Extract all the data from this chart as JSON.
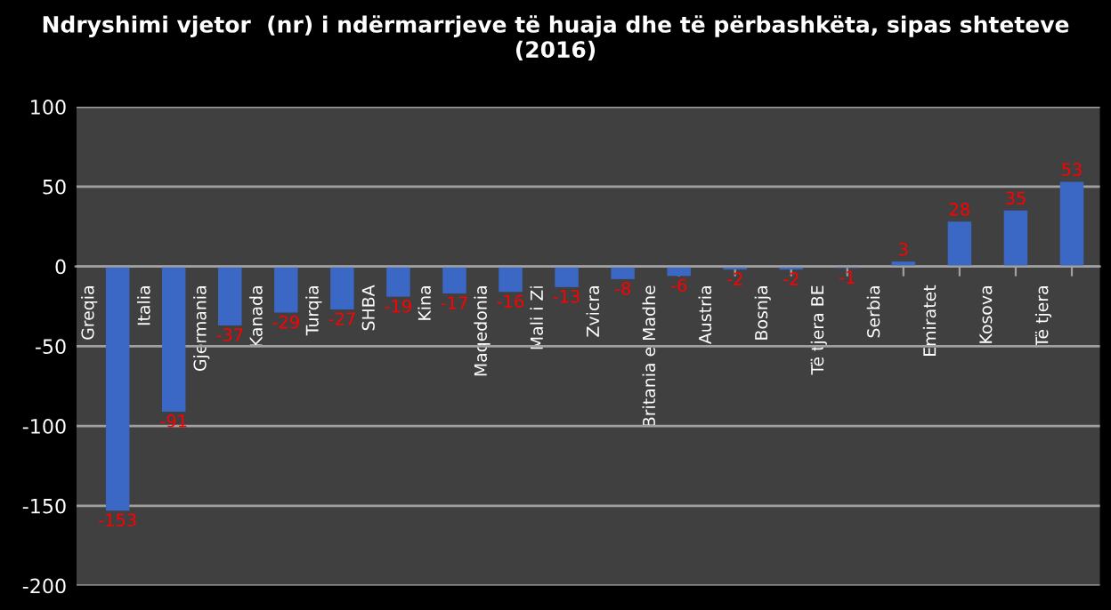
{
  "chart_data": {
    "type": "bar",
    "title": "Ndryshimi vjetor  (nr) i ndërmarrjeve të huaja dhe të përbashkëta, sipas shteteve\n(2016)",
    "categories": [
      "Greqia",
      "Italia",
      "Gjermania",
      "Kanada",
      "Turqia",
      "SHBA",
      "Kina",
      "Maqedonia",
      "Mali i Zi",
      "Zvicra",
      "Britania e Madhe",
      "Austria",
      "Bosnja",
      "Të tjera BE",
      "Serbia",
      "Emiratet",
      "Kosova",
      "Të tjera"
    ],
    "values": [
      -153,
      -91,
      -37,
      -29,
      -27,
      -19,
      -17,
      -16,
      -13,
      -8,
      -6,
      -2,
      -2,
      -1,
      3,
      28,
      35,
      53
    ],
    "color": "#3b68c4",
    "data_labels": true,
    "ylim": [
      -200,
      100
    ],
    "yticks": [
      -200,
      -150,
      -100,
      -50,
      0,
      50,
      100
    ],
    "grid": "y",
    "legend": false
  }
}
